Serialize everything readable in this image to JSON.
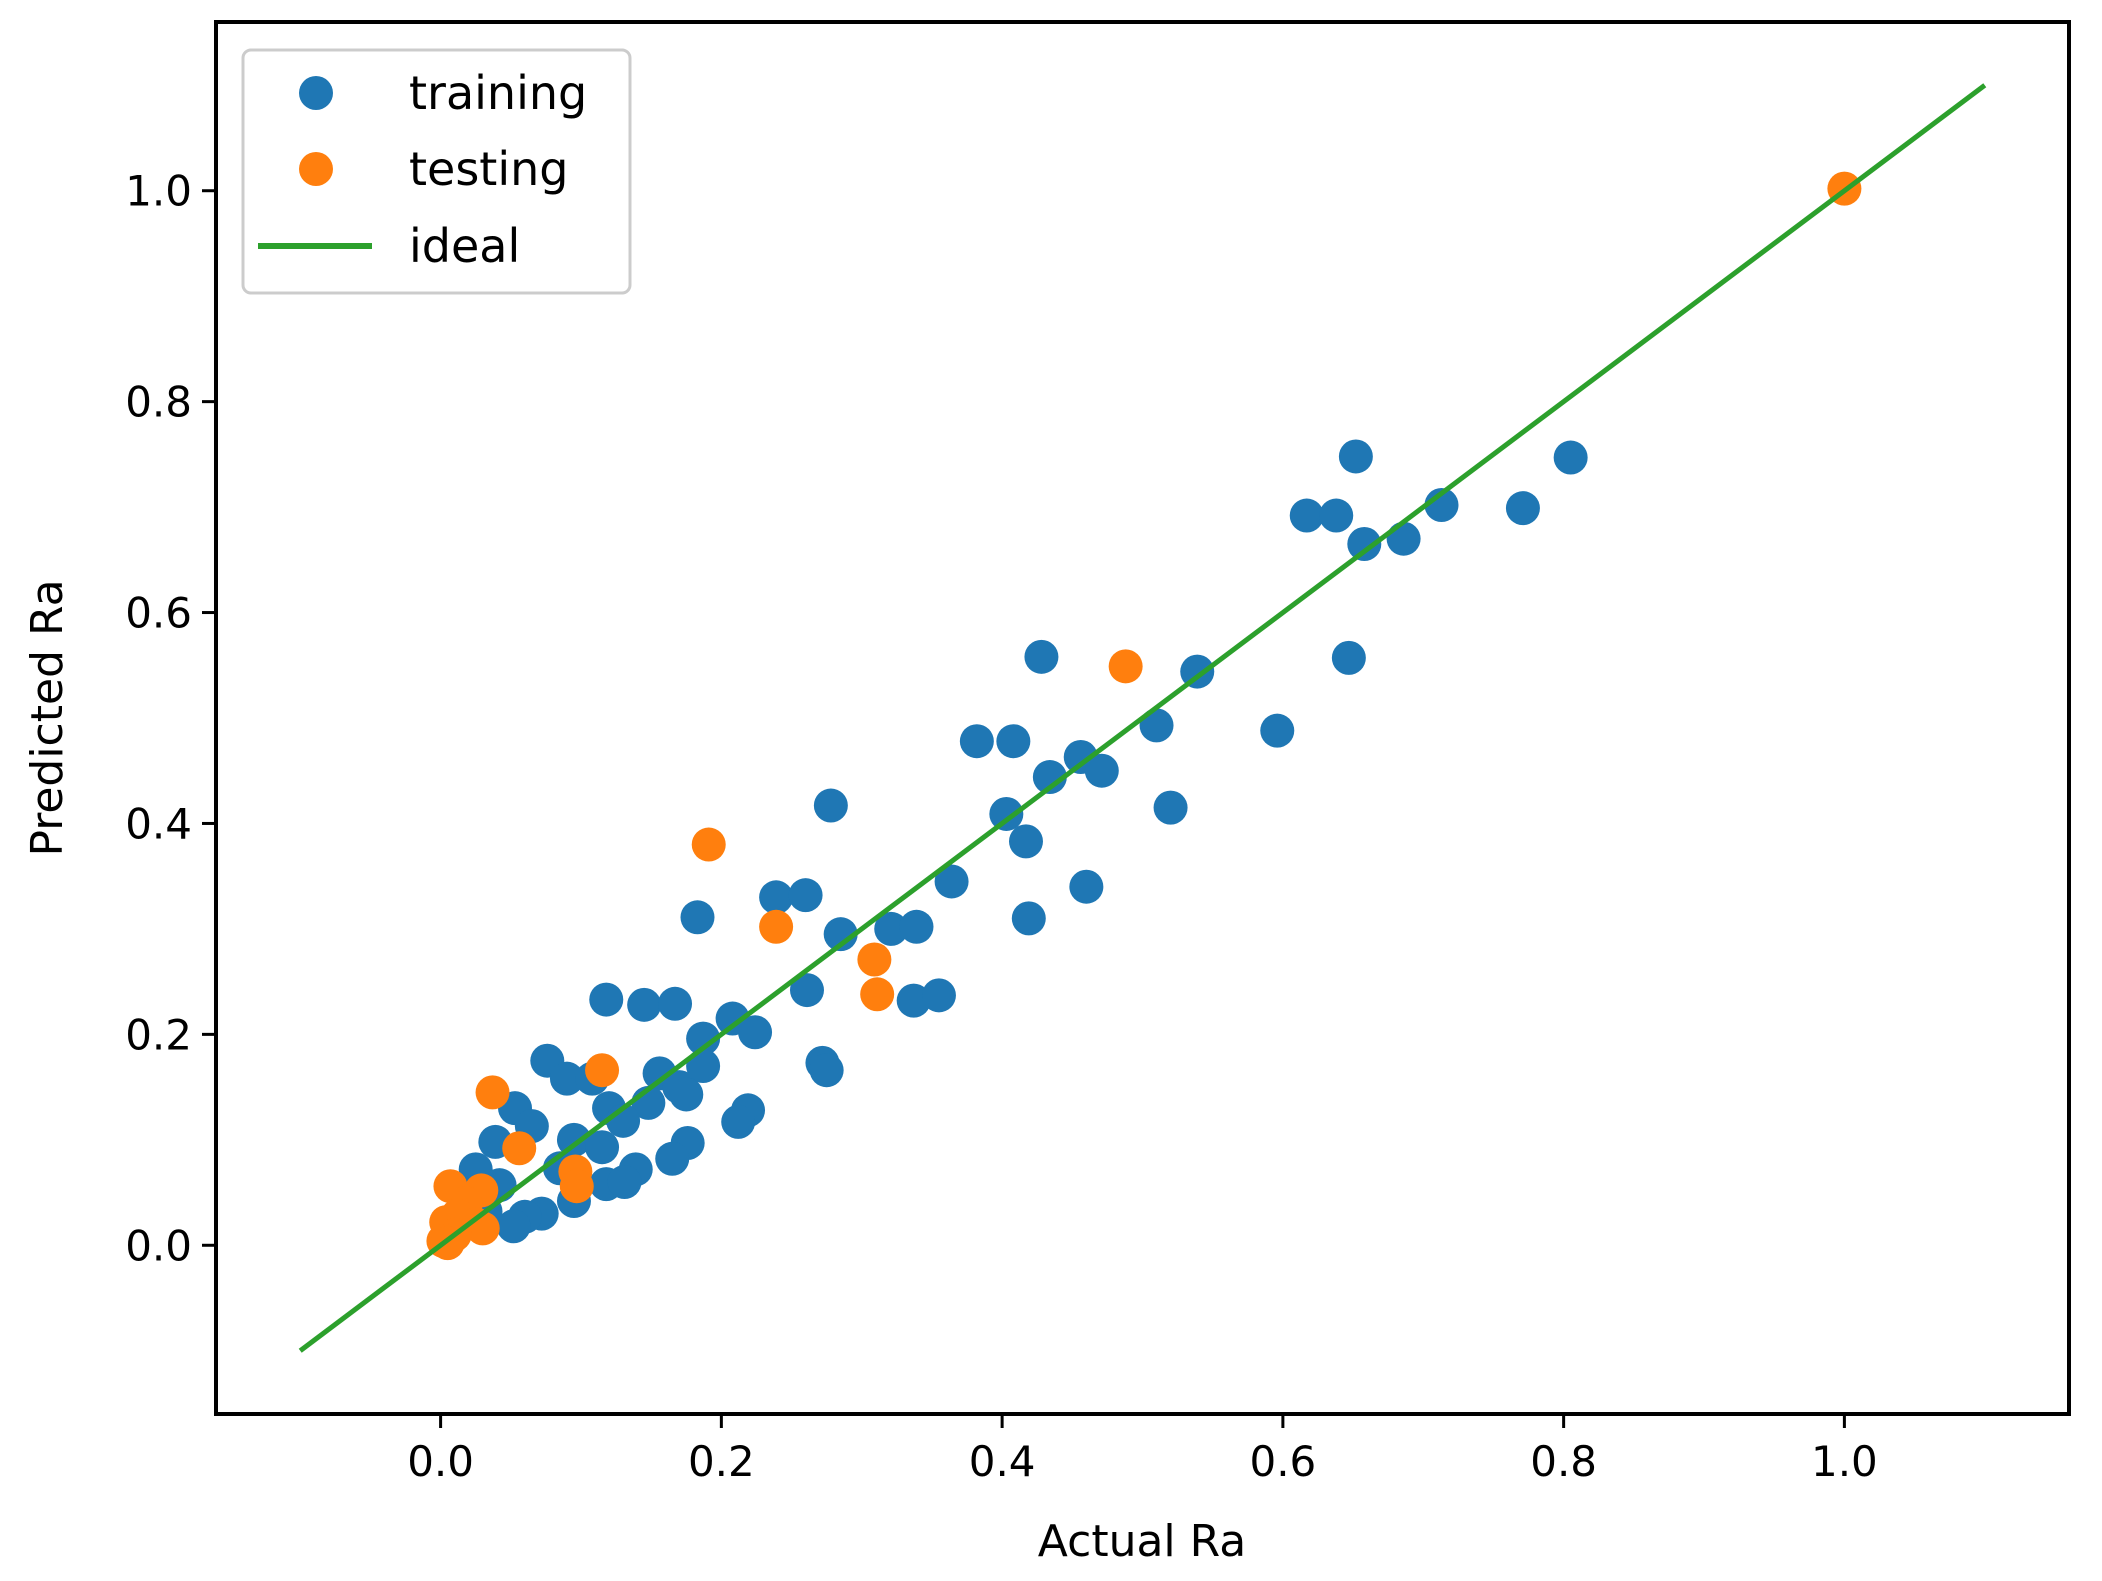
{
  "chart_data": {
    "type": "scatter",
    "title": "",
    "xlabel": "Actual Ra",
    "ylabel": "Predicted Ra",
    "xlim": [
      -0.16,
      1.16
    ],
    "ylim": [
      -0.16,
      1.16
    ],
    "xticks": [
      0.0,
      0.2,
      0.4,
      0.6,
      0.8,
      1.0
    ],
    "yticks": [
      0.0,
      0.2,
      0.4,
      0.6,
      0.8,
      1.0
    ],
    "xtick_labels": [
      "0.0",
      "0.2",
      "0.4",
      "0.6",
      "0.8",
      "1.0"
    ],
    "ytick_labels": [
      "0.0",
      "0.2",
      "0.4",
      "0.6",
      "0.8",
      "1.0"
    ],
    "grid": false,
    "legend_position": "top-left",
    "series": [
      {
        "name": "training",
        "kind": "scatter",
        "color": "#1f77b4",
        "points": [
          [
            0.652,
            0.748
          ],
          [
            0.805,
            0.747
          ],
          [
            0.617,
            0.692
          ],
          [
            0.638,
            0.692
          ],
          [
            0.713,
            0.702
          ],
          [
            0.771,
            0.699
          ],
          [
            0.658,
            0.665
          ],
          [
            0.686,
            0.67
          ],
          [
            0.428,
            0.558
          ],
          [
            0.647,
            0.557
          ],
          [
            0.539,
            0.544
          ],
          [
            0.51,
            0.493
          ],
          [
            0.596,
            0.488
          ],
          [
            0.382,
            0.478
          ],
          [
            0.408,
            0.478
          ],
          [
            0.456,
            0.463
          ],
          [
            0.434,
            0.444
          ],
          [
            0.471,
            0.45
          ],
          [
            0.278,
            0.417
          ],
          [
            0.52,
            0.415
          ],
          [
            0.403,
            0.409
          ],
          [
            0.417,
            0.383
          ],
          [
            0.46,
            0.34
          ],
          [
            0.364,
            0.345
          ],
          [
            0.239,
            0.33
          ],
          [
            0.26,
            0.332
          ],
          [
            0.183,
            0.311
          ],
          [
            0.419,
            0.31
          ],
          [
            0.285,
            0.295
          ],
          [
            0.321,
            0.3
          ],
          [
            0.339,
            0.302
          ],
          [
            0.261,
            0.242
          ],
          [
            0.337,
            0.232
          ],
          [
            0.355,
            0.237
          ],
          [
            0.118,
            0.233
          ],
          [
            0.145,
            0.228
          ],
          [
            0.167,
            0.229
          ],
          [
            0.208,
            0.215
          ],
          [
            0.224,
            0.202
          ],
          [
            0.187,
            0.196
          ],
          [
            0.076,
            0.175
          ],
          [
            0.272,
            0.173
          ],
          [
            0.275,
            0.166
          ],
          [
            0.187,
            0.17
          ],
          [
            0.156,
            0.163
          ],
          [
            0.09,
            0.158
          ],
          [
            0.108,
            0.158
          ],
          [
            0.17,
            0.15
          ],
          [
            0.175,
            0.143
          ],
          [
            0.12,
            0.13
          ],
          [
            0.148,
            0.135
          ],
          [
            0.053,
            0.13
          ],
          [
            0.219,
            0.128
          ],
          [
            0.212,
            0.117
          ],
          [
            0.13,
            0.118
          ],
          [
            0.065,
            0.113
          ],
          [
            0.039,
            0.098
          ],
          [
            0.095,
            0.1
          ],
          [
            0.115,
            0.093
          ],
          [
            0.176,
            0.097
          ],
          [
            0.165,
            0.082
          ],
          [
            0.025,
            0.072
          ],
          [
            0.085,
            0.073
          ],
          [
            0.139,
            0.072
          ],
          [
            0.118,
            0.058
          ],
          [
            0.131,
            0.06
          ],
          [
            0.042,
            0.057
          ],
          [
            0.095,
            0.042
          ],
          [
            0.072,
            0.03
          ],
          [
            0.06,
            0.027
          ],
          [
            0.052,
            0.018
          ],
          [
            0.018,
            0.022
          ],
          [
            0.01,
            0.012
          ],
          [
            0.032,
            0.032
          ],
          [
            0.005,
            0.005
          ]
        ]
      },
      {
        "name": "testing",
        "kind": "scatter",
        "color": "#ff7f0e",
        "points": [
          [
            1.0,
            1.002
          ],
          [
            0.488,
            0.549
          ],
          [
            0.191,
            0.38
          ],
          [
            0.239,
            0.302
          ],
          [
            0.309,
            0.271
          ],
          [
            0.311,
            0.238
          ],
          [
            0.115,
            0.166
          ],
          [
            0.037,
            0.145
          ],
          [
            0.056,
            0.092
          ],
          [
            0.096,
            0.07
          ],
          [
            0.097,
            0.056
          ],
          [
            0.007,
            0.056
          ],
          [
            0.029,
            0.052
          ],
          [
            0.018,
            0.04
          ],
          [
            0.012,
            0.028
          ],
          [
            0.004,
            0.022
          ],
          [
            0.025,
            0.02
          ],
          [
            0.03,
            0.016
          ],
          [
            0.01,
            0.01
          ],
          [
            0.002,
            0.004
          ],
          [
            0.005,
            0.002
          ]
        ]
      },
      {
        "name": "ideal",
        "kind": "line",
        "color": "#2ca02c",
        "x": [
          -0.1,
          1.1
        ],
        "y": [
          -0.1,
          1.1
        ]
      }
    ]
  }
}
